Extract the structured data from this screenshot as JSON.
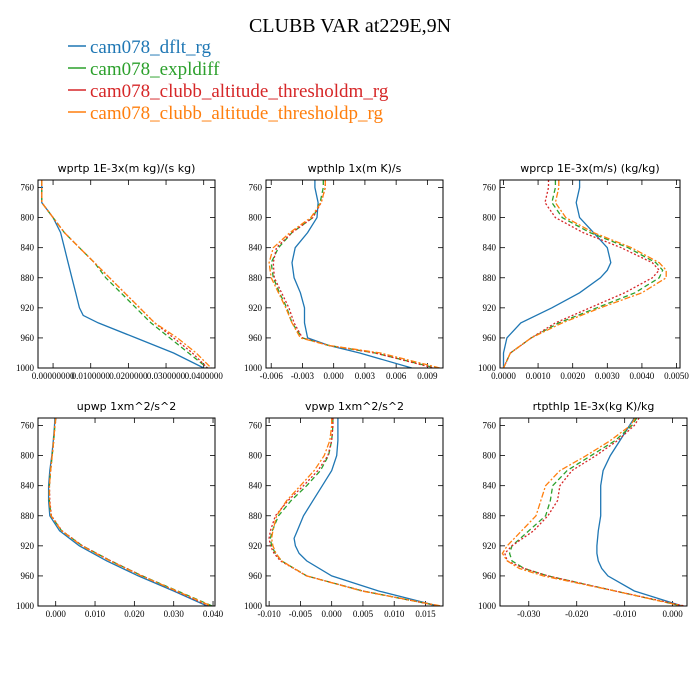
{
  "page": {
    "title": "CLUBB VAR at229E,9N"
  },
  "legend": [
    {
      "label": "cam078_dflt_rg",
      "color": "#1f77b4"
    },
    {
      "label": "cam078_expldiff",
      "color": "#2ca02c"
    },
    {
      "label": "cam078_clubb_altitude_thresholdm_rg",
      "color": "#d62728"
    },
    {
      "label": "cam078_clubb_altitude_thresholdp_rg",
      "color": "#ff7f0e"
    }
  ],
  "chart_data": [
    {
      "type": "line",
      "title": "wprtp  1E-3x(m kg)/(s kg)",
      "ylim": [
        1000,
        750
      ],
      "yticks": [
        760,
        800,
        840,
        880,
        920,
        960,
        1000
      ],
      "xlim": [
        -0.004,
        0.043
      ],
      "xticks": [
        0.0,
        0.01,
        0.02,
        0.03,
        0.04
      ],
      "xtick_labels": [
        "0.00000000",
        "0.0100000",
        "0.0200000",
        "0.0300000",
        "0.0400000"
      ],
      "y": [
        750,
        760,
        780,
        800,
        820,
        840,
        860,
        880,
        900,
        920,
        930,
        940,
        960,
        980,
        1000
      ],
      "series": [
        {
          "name": "cam078_dflt_rg",
          "color": "#1f77b4",
          "dash": "",
          "x": [
            -0.003,
            -0.003,
            -0.003,
            0.0,
            0.002,
            0.003,
            0.004,
            0.005,
            0.006,
            0.007,
            0.008,
            0.012,
            0.022,
            0.032,
            0.04
          ]
        },
        {
          "name": "cam078_expldiff",
          "color": "#2ca02c",
          "dash": "5,3",
          "x": [
            -0.003,
            -0.003,
            -0.003,
            0.0,
            0.003,
            0.007,
            0.011,
            0.014,
            0.018,
            0.022,
            0.024,
            0.026,
            0.031,
            0.036,
            0.041
          ]
        },
        {
          "name": "cam078_clubb_altitude_thresholdm_rg",
          "color": "#d62728",
          "dash": "2,2",
          "x": [
            -0.003,
            -0.003,
            -0.003,
            0.0,
            0.003,
            0.007,
            0.011,
            0.015,
            0.019,
            0.023,
            0.025,
            0.027,
            0.032,
            0.037,
            0.041
          ]
        },
        {
          "name": "cam078_clubb_altitude_thresholdp_rg",
          "color": "#ff7f0e",
          "dash": "6,2,2,2",
          "x": [
            -0.003,
            -0.003,
            -0.003,
            0.0,
            0.003,
            0.007,
            0.011,
            0.015,
            0.019,
            0.023,
            0.025,
            0.027,
            0.033,
            0.038,
            0.042
          ]
        }
      ]
    },
    {
      "type": "line",
      "title": "wpthlp  1x(m K)/s",
      "ylim": [
        1000,
        750
      ],
      "yticks": [
        760,
        800,
        840,
        880,
        920,
        960,
        1000
      ],
      "xlim": [
        -0.0065,
        0.0105
      ],
      "xticks": [
        -0.006,
        -0.003,
        0.0,
        0.003,
        0.006,
        0.009
      ],
      "xtick_labels": [
        "-0.006",
        "-0.003",
        "0.000",
        "0.003",
        "0.006",
        "0.009"
      ],
      "y": [
        750,
        760,
        780,
        800,
        820,
        840,
        860,
        880,
        900,
        920,
        940,
        960,
        970,
        980,
        1000
      ],
      "series": [
        {
          "name": "cam078_dflt_rg",
          "color": "#1f77b4",
          "dash": "",
          "x": [
            -0.0018,
            -0.0018,
            -0.0015,
            -0.0016,
            -0.0025,
            -0.0037,
            -0.004,
            -0.0038,
            -0.0032,
            -0.0028,
            -0.0028,
            -0.0025,
            -0.0005,
            0.0025,
            0.0075
          ]
        },
        {
          "name": "cam078_expldiff",
          "color": "#2ca02c",
          "dash": "5,3",
          "x": [
            -0.001,
            -0.001,
            -0.0013,
            -0.002,
            -0.004,
            -0.0053,
            -0.006,
            -0.0058,
            -0.0052,
            -0.0045,
            -0.004,
            -0.003,
            -0.0005,
            0.004,
            0.0098
          ]
        },
        {
          "name": "cam078_clubb_altitude_thresholdm_rg",
          "color": "#d62728",
          "dash": "2,2",
          "x": [
            -0.0008,
            -0.0008,
            -0.0012,
            -0.002,
            -0.004,
            -0.0055,
            -0.0058,
            -0.0057,
            -0.005,
            -0.0043,
            -0.0038,
            -0.003,
            -0.0005,
            0.004,
            0.0096
          ]
        },
        {
          "name": "cam078_clubb_altitude_thresholdp_rg",
          "color": "#ff7f0e",
          "dash": "6,2,2,2",
          "x": [
            -0.0008,
            -0.0008,
            -0.0012,
            -0.0022,
            -0.0042,
            -0.0058,
            -0.0062,
            -0.006,
            -0.0053,
            -0.0046,
            -0.004,
            -0.0032,
            -0.0005,
            0.0045,
            0.0102
          ]
        }
      ]
    },
    {
      "type": "line",
      "title": "wprcp  1E-3x(m/s) (kg/kg)",
      "ylim": [
        1000,
        750
      ],
      "yticks": [
        760,
        800,
        840,
        880,
        920,
        960,
        1000
      ],
      "xlim": [
        -0.0001,
        0.0051
      ],
      "xticks": [
        0.0,
        0.001,
        0.002,
        0.003,
        0.004,
        0.005
      ],
      "xtick_labels": [
        "0.0000",
        "0.0010",
        "0.0020",
        "0.0030",
        "0.0040",
        "0.0050"
      ],
      "y": [
        750,
        760,
        780,
        800,
        820,
        840,
        860,
        870,
        880,
        900,
        920,
        940,
        960,
        980,
        1000
      ],
      "series": [
        {
          "name": "cam078_dflt_rg",
          "color": "#1f77b4",
          "dash": "",
          "x": [
            0.0022,
            0.0022,
            0.0021,
            0.0022,
            0.0026,
            0.003,
            0.0031,
            0.003,
            0.0028,
            0.0022,
            0.0014,
            0.0005,
            0.0001,
            0.0,
            0.0
          ]
        },
        {
          "name": "cam078_expldiff",
          "color": "#2ca02c",
          "dash": "5,3",
          "x": [
            0.0015,
            0.0015,
            0.0014,
            0.0017,
            0.0025,
            0.0036,
            0.0044,
            0.0046,
            0.0045,
            0.0038,
            0.0027,
            0.0016,
            0.0008,
            0.0002,
            0.0
          ]
        },
        {
          "name": "cam078_clubb_altitude_thresholdm_rg",
          "color": "#d62728",
          "dash": "2,2",
          "x": [
            0.0013,
            0.0013,
            0.0012,
            0.0015,
            0.0023,
            0.0034,
            0.0043,
            0.0045,
            0.0043,
            0.0035,
            0.0025,
            0.0015,
            0.0008,
            0.0002,
            0.0
          ]
        },
        {
          "name": "cam078_clubb_altitude_thresholdp_rg",
          "color": "#ff7f0e",
          "dash": "6,2,2,2",
          "x": [
            0.0016,
            0.0016,
            0.0015,
            0.0018,
            0.0026,
            0.0037,
            0.0045,
            0.0047,
            0.0047,
            0.004,
            0.0028,
            0.0017,
            0.0008,
            0.0002,
            0.0
          ]
        }
      ]
    },
    {
      "type": "line",
      "title": "upwp  1xm^2/s^2",
      "ylim": [
        1000,
        750
      ],
      "yticks": [
        760,
        800,
        840,
        880,
        920,
        960,
        1000
      ],
      "xlim": [
        -0.0045,
        0.0405
      ],
      "xticks": [
        0.0,
        0.01,
        0.02,
        0.03,
        0.04
      ],
      "xtick_labels": [
        "0.000",
        "0.010",
        "0.020",
        "0.030",
        "0.040"
      ],
      "y": [
        750,
        760,
        780,
        800,
        820,
        840,
        860,
        880,
        900,
        920,
        940,
        960,
        980,
        1000
      ],
      "series": [
        {
          "name": "cam078_dflt_rg",
          "color": "#1f77b4",
          "dash": "",
          "x": [
            -0.0002,
            -0.0003,
            -0.0006,
            -0.001,
            -0.0015,
            -0.0018,
            -0.0018,
            -0.0015,
            0.001,
            0.006,
            0.013,
            0.021,
            0.03,
            0.0385
          ]
        },
        {
          "name": "cam078_expldiff",
          "color": "#2ca02c",
          "dash": "5,3",
          "x": [
            0.0,
            -0.0002,
            -0.0005,
            -0.0009,
            -0.0013,
            -0.0016,
            -0.0016,
            -0.0012,
            0.0015,
            0.0068,
            0.014,
            0.022,
            0.031,
            0.0398
          ]
        },
        {
          "name": "cam078_clubb_altitude_thresholdm_rg",
          "color": "#d62728",
          "dash": "2,2",
          "x": [
            0.0,
            -0.0002,
            -0.0005,
            -0.0009,
            -0.0013,
            -0.0016,
            -0.0015,
            -0.0011,
            0.0016,
            0.0068,
            0.014,
            0.022,
            0.0305,
            0.039
          ]
        },
        {
          "name": "cam078_clubb_altitude_thresholdp_rg",
          "color": "#ff7f0e",
          "dash": "6,2,2,2",
          "x": [
            0.0,
            -0.0002,
            -0.0005,
            -0.0009,
            -0.0013,
            -0.0016,
            -0.0016,
            -0.0012,
            0.0015,
            0.0066,
            0.0138,
            0.0218,
            0.0308,
            0.0395
          ]
        }
      ]
    },
    {
      "type": "line",
      "title": "vpwp  1xm^2/s^2",
      "ylim": [
        1000,
        750
      ],
      "yticks": [
        760,
        800,
        840,
        880,
        920,
        960,
        1000
      ],
      "xlim": [
        -0.0105,
        0.0178
      ],
      "xticks": [
        -0.01,
        -0.005,
        0.0,
        0.005,
        0.01,
        0.015
      ],
      "xtick_labels": [
        "-0.010",
        "-0.005",
        "0.000",
        "0.005",
        "0.010",
        "0.015"
      ],
      "y": [
        750,
        760,
        780,
        800,
        820,
        840,
        860,
        880,
        900,
        910,
        920,
        930,
        940,
        960,
        980,
        1000
      ],
      "series": [
        {
          "name": "cam078_dflt_rg",
          "color": "#1f77b4",
          "dash": "",
          "x": [
            0.001,
            0.001,
            0.001,
            0.0008,
            0.0,
            -0.0015,
            -0.003,
            -0.0045,
            -0.0055,
            -0.006,
            -0.0058,
            -0.0052,
            -0.004,
            0.0,
            0.0075,
            0.017
          ]
        },
        {
          "name": "cam078_expldiff",
          "color": "#2ca02c",
          "dash": "5,3",
          "x": [
            0.0002,
            0.0002,
            0.0,
            -0.0005,
            -0.0018,
            -0.004,
            -0.0065,
            -0.0085,
            -0.0095,
            -0.0098,
            -0.0096,
            -0.009,
            -0.008,
            -0.004,
            0.005,
            0.0172
          ]
        },
        {
          "name": "cam078_clubb_altitude_thresholdm_rg",
          "color": "#d62728",
          "dash": "2,2",
          "x": [
            0.0002,
            0.0002,
            0.0,
            -0.0006,
            -0.0022,
            -0.0045,
            -0.007,
            -0.009,
            -0.0098,
            -0.01,
            -0.0098,
            -0.0092,
            -0.0082,
            -0.004,
            0.005,
            0.0172
          ]
        },
        {
          "name": "cam078_clubb_altitude_thresholdp_rg",
          "color": "#ff7f0e",
          "dash": "6,2,2,2",
          "x": [
            0.0,
            0.0,
            -0.0003,
            -0.0012,
            -0.0028,
            -0.005,
            -0.0072,
            -0.0088,
            -0.0094,
            -0.0096,
            -0.0094,
            -0.0089,
            -0.008,
            -0.004,
            0.0048,
            0.0175
          ]
        }
      ]
    },
    {
      "type": "line",
      "title": "rtpthlp  1E-3x(kg K)/kg",
      "ylim": [
        1000,
        750
      ],
      "yticks": [
        760,
        800,
        840,
        880,
        920,
        960,
        1000
      ],
      "xlim": [
        -0.036,
        0.003
      ],
      "xticks": [
        -0.03,
        -0.02,
        -0.01,
        0.0
      ],
      "xtick_labels": [
        "-0.030",
        "-0.020",
        "-0.010",
        "0.000"
      ],
      "y": [
        750,
        760,
        780,
        800,
        820,
        840,
        860,
        880,
        900,
        920,
        930,
        940,
        950,
        960,
        980,
        1000
      ],
      "series": [
        {
          "name": "cam078_dflt_rg",
          "color": "#1f77b4",
          "dash": "",
          "x": [
            -0.008,
            -0.009,
            -0.011,
            -0.013,
            -0.0145,
            -0.015,
            -0.015,
            -0.015,
            -0.0155,
            -0.0158,
            -0.0158,
            -0.0155,
            -0.0148,
            -0.0135,
            -0.008,
            0.002
          ]
        },
        {
          "name": "cam078_expldiff",
          "color": "#2ca02c",
          "dash": "5,3",
          "x": [
            -0.0075,
            -0.0085,
            -0.012,
            -0.017,
            -0.022,
            -0.025,
            -0.0255,
            -0.0265,
            -0.03,
            -0.0335,
            -0.034,
            -0.0335,
            -0.031,
            -0.026,
            -0.012,
            0.002
          ]
        },
        {
          "name": "cam078_clubb_altitude_thresholdm_rg",
          "color": "#d62728",
          "dash": "2,2",
          "x": [
            -0.007,
            -0.008,
            -0.0115,
            -0.016,
            -0.021,
            -0.0235,
            -0.024,
            -0.026,
            -0.029,
            -0.0335,
            -0.035,
            -0.0345,
            -0.031,
            -0.026,
            -0.012,
            0.0025
          ]
        },
        {
          "name": "cam078_clubb_altitude_thresholdp_rg",
          "color": "#ff7f0e",
          "dash": "6,2,2,2",
          "x": [
            -0.0078,
            -0.0088,
            -0.013,
            -0.018,
            -0.0235,
            -0.0265,
            -0.0275,
            -0.0285,
            -0.0315,
            -0.0345,
            -0.0355,
            -0.0345,
            -0.032,
            -0.027,
            -0.012,
            0.002
          ]
        }
      ]
    }
  ]
}
